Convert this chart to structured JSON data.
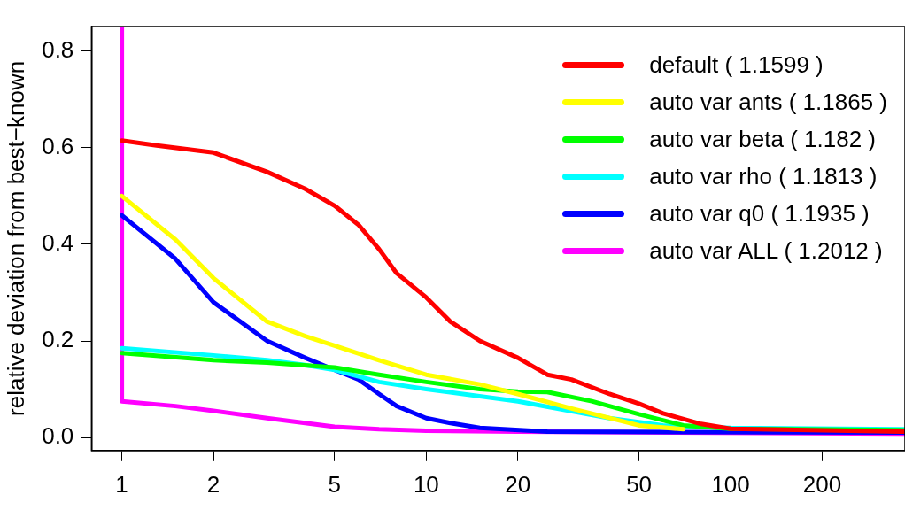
{
  "chart_data": {
    "type": "line",
    "ylabel": "relative deviation from best−known",
    "log": "x",
    "xlim": [
      0.795,
      374
    ],
    "xticks": [
      1,
      2,
      5,
      10,
      20,
      50,
      100,
      200
    ],
    "ylim": [
      -0.027,
      0.851
    ],
    "yticks": [
      {
        "value": 0,
        "label": "0.0"
      },
      {
        "value": 0.2,
        "label": "0.2"
      },
      {
        "value": 0.4,
        "label": "0.4"
      },
      {
        "value": 0.6,
        "label": "0.6"
      },
      {
        "value": 0.8,
        "label": "0.8"
      }
    ],
    "grid": false,
    "legend": "top right",
    "marker": "none",
    "line_style": "solid",
    "series": [
      {
        "name": "default ( 1.1599 )",
        "color": "#ff0000",
        "x": [
          1,
          1.3,
          2,
          3,
          4,
          5,
          6,
          7,
          8,
          10,
          12,
          15,
          20,
          25,
          30,
          40,
          50,
          60,
          80,
          100,
          374
        ],
        "values": [
          0.615,
          0.605,
          0.59,
          0.55,
          0.515,
          0.48,
          0.44,
          0.39,
          0.34,
          0.29,
          0.24,
          0.2,
          0.165,
          0.13,
          0.12,
          0.09,
          0.07,
          0.05,
          0.028,
          0.018,
          0.012
        ]
      },
      {
        "name": "auto var ants ( 1.1865 )",
        "color": "#ffff00",
        "x": [
          1,
          1.5,
          2,
          3,
          4,
          5,
          7,
          10,
          15,
          20,
          30,
          50,
          70
        ],
        "values": [
          0.5,
          0.41,
          0.33,
          0.24,
          0.21,
          0.19,
          0.16,
          0.13,
          0.11,
          0.09,
          0.06,
          0.025,
          0.017
        ]
      },
      {
        "name": "auto var beta ( 1.182 )",
        "color": "#00ff00",
        "x": [
          1,
          2,
          3,
          5,
          7,
          10,
          15,
          20,
          25,
          35,
          50,
          70,
          100,
          374
        ],
        "values": [
          0.175,
          0.16,
          0.155,
          0.145,
          0.13,
          0.115,
          0.1,
          0.095,
          0.094,
          0.075,
          0.048,
          0.025,
          0.018,
          0.015
        ]
      },
      {
        "name": "auto var rho ( 1.1813 )",
        "color": "#00ffff",
        "x": [
          1,
          2,
          3,
          4,
          5,
          7,
          10,
          20,
          40,
          60,
          100,
          374
        ],
        "values": [
          0.185,
          0.17,
          0.16,
          0.15,
          0.14,
          0.115,
          0.1,
          0.075,
          0.04,
          0.025,
          0.02,
          0.017
        ]
      },
      {
        "name": "auto var q0 ( 1.1935 )",
        "color": "#0000ff",
        "x": [
          1,
          1.5,
          2,
          3,
          4,
          5,
          6,
          7,
          8,
          10,
          12,
          15,
          25,
          374
        ],
        "values": [
          0.46,
          0.37,
          0.28,
          0.2,
          0.165,
          0.14,
          0.12,
          0.09,
          0.065,
          0.04,
          0.03,
          0.02,
          0.012,
          0.01
        ]
      },
      {
        "name": "auto var ALL ( 1.2012 )",
        "color": "#ff00ff",
        "x": [
          1,
          1,
          1.5,
          2,
          3,
          4,
          5,
          7,
          10,
          20,
          374
        ],
        "values": [
          0.851,
          0.075,
          0.065,
          0.055,
          0.04,
          0.03,
          0.022,
          0.017,
          0.014,
          0.012,
          0.008
        ]
      }
    ]
  }
}
